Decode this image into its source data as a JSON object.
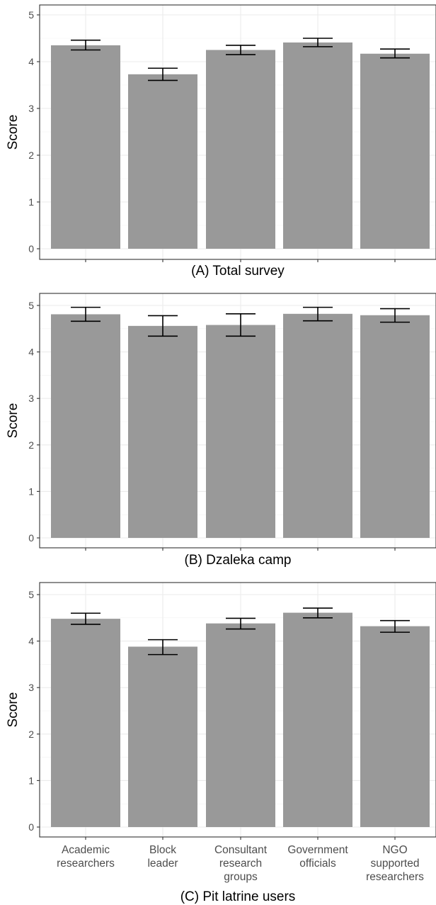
{
  "chart_data": [
    {
      "type": "bar",
      "title": "(A) Total survey",
      "ylabel": "Score",
      "ylim": [
        0,
        5
      ],
      "yticks": [
        "0",
        "1",
        "2",
        "3",
        "4",
        "5"
      ],
      "grid": true,
      "categories": [
        "Academic researchers",
        "Block leader",
        "Consultant research groups",
        "Government officials",
        "NGO supported researchers"
      ],
      "values": [
        4.35,
        3.73,
        4.25,
        4.41,
        4.17
      ],
      "error_low": [
        4.25,
        3.6,
        4.15,
        4.32,
        4.08
      ],
      "error_high": [
        4.46,
        3.86,
        4.35,
        4.5,
        4.27
      ],
      "colors": {
        "bar": "#999999",
        "error": "#000000"
      }
    },
    {
      "type": "bar",
      "title": "(B) Dzaleka camp",
      "ylabel": "Score",
      "ylim": [
        0,
        5
      ],
      "yticks": [
        "0",
        "1",
        "2",
        "3",
        "4",
        "5"
      ],
      "grid": true,
      "categories": [
        "Academic researchers",
        "Block leader",
        "Consultant research groups",
        "Government officials",
        "NGO supported researchers"
      ],
      "values": [
        4.81,
        4.56,
        4.58,
        4.82,
        4.79
      ],
      "error_low": [
        4.66,
        4.34,
        4.34,
        4.67,
        4.64
      ],
      "error_high": [
        4.96,
        4.78,
        4.82,
        4.96,
        4.93
      ],
      "colors": {
        "bar": "#999999",
        "error": "#000000"
      }
    },
    {
      "type": "bar",
      "title": "(C) Pit latrine users",
      "ylabel": "Score",
      "ylim": [
        0,
        5
      ],
      "yticks": [
        "0",
        "1",
        "2",
        "3",
        "4",
        "5"
      ],
      "grid": true,
      "categories": [
        "Academic researchers",
        "Block leader",
        "Consultant research groups",
        "Government officials",
        "NGO supported researchers"
      ],
      "category_lines": [
        [
          "Academic",
          "researchers"
        ],
        [
          "Block",
          "leader"
        ],
        [
          "Consultant",
          "research",
          "groups"
        ],
        [
          "Government",
          "officials"
        ],
        [
          "NGO",
          "supported",
          "researchers"
        ]
      ],
      "values": [
        4.48,
        3.88,
        4.38,
        4.61,
        4.32
      ],
      "error_low": [
        4.36,
        3.71,
        4.26,
        4.5,
        4.19
      ],
      "error_high": [
        4.6,
        4.03,
        4.49,
        4.71,
        4.44
      ],
      "colors": {
        "bar": "#999999",
        "error": "#000000"
      }
    }
  ]
}
